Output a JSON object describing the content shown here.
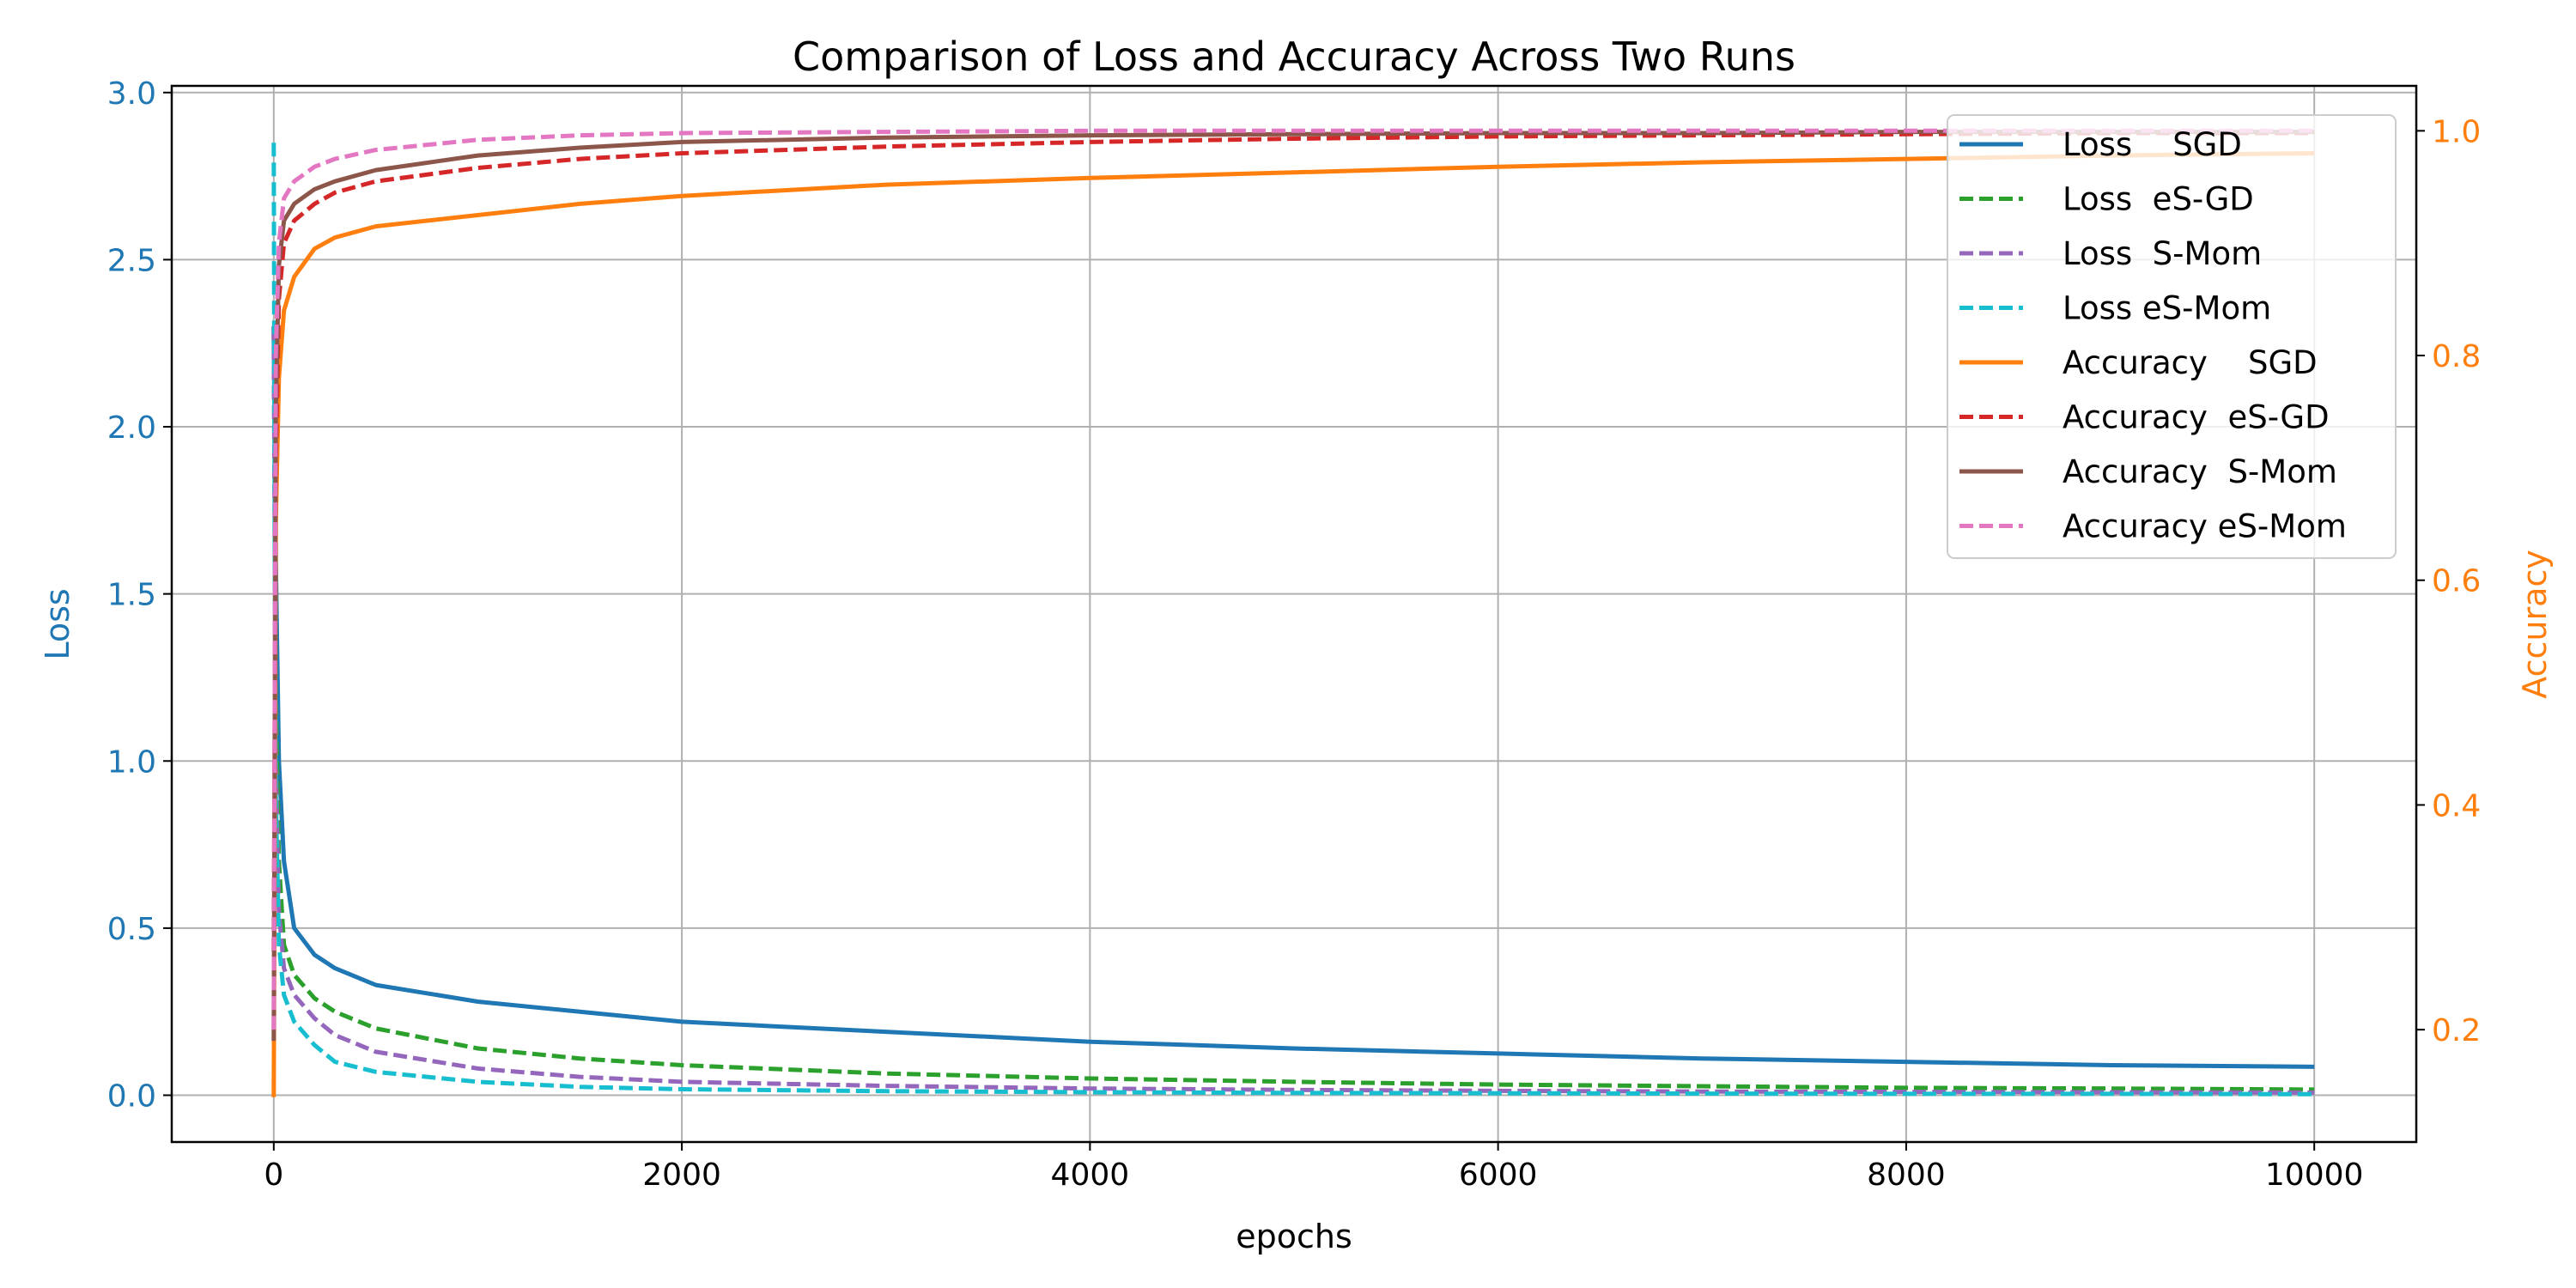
{
  "chart_data": {
    "type": "line",
    "title": "Comparison of Loss and Accuracy Across Two Runs",
    "xlabel": "epochs",
    "ylabel_left": "Loss",
    "ylabel_right": "Accuracy",
    "xlim": [
      -500,
      10500
    ],
    "ylim_left": [
      -0.14,
      3.02
    ],
    "ylim_right": [
      0.1,
      1.04
    ],
    "x_ticks": [
      0,
      2000,
      4000,
      6000,
      8000,
      10000
    ],
    "y_ticks_left": [
      0.0,
      0.5,
      1.0,
      1.5,
      2.0,
      2.5,
      3.0
    ],
    "y_tick_labels_left": [
      "0.0",
      "0.5",
      "1.0",
      "1.5",
      "2.0",
      "2.5",
      "3.0"
    ],
    "y_ticks_right": [
      0.2,
      0.4,
      0.6,
      0.8,
      1.0
    ],
    "y_tick_labels_right": [
      "0.2",
      "0.4",
      "0.6",
      "0.8",
      "1.0"
    ],
    "grid": true,
    "legend_position": "top-right",
    "colors": {
      "left_axis": "#1f77b4",
      "right_axis": "#ff7f0e"
    },
    "series": [
      {
        "name": "Loss    SGD",
        "axis": "left",
        "color": "#1f77b4",
        "dash": "solid",
        "x": [
          0,
          10,
          25,
          50,
          100,
          200,
          300,
          500,
          1000,
          1500,
          2000,
          3000,
          4000,
          5000,
          6000,
          7000,
          8000,
          9000,
          10000
        ],
        "y": [
          2.3,
          1.6,
          1.0,
          0.7,
          0.5,
          0.42,
          0.38,
          0.33,
          0.28,
          0.25,
          0.22,
          0.19,
          0.16,
          0.14,
          0.125,
          0.11,
          0.1,
          0.09,
          0.085
        ]
      },
      {
        "name": "Loss  eS-GD",
        "axis": "left",
        "color": "#2ca02c",
        "dash": "dashed",
        "x": [
          0,
          10,
          25,
          50,
          100,
          200,
          300,
          500,
          1000,
          1500,
          2000,
          3000,
          4000,
          5000,
          6000,
          7000,
          8000,
          9000,
          10000
        ],
        "y": [
          2.3,
          1.2,
          0.7,
          0.45,
          0.36,
          0.29,
          0.25,
          0.2,
          0.14,
          0.11,
          0.09,
          0.065,
          0.05,
          0.04,
          0.032,
          0.027,
          0.022,
          0.02,
          0.017
        ]
      },
      {
        "name": "Loss  S-Mom",
        "axis": "left",
        "color": "#9467bd",
        "dash": "dashed",
        "x": [
          0,
          10,
          25,
          50,
          100,
          200,
          300,
          500,
          1000,
          1500,
          2000,
          3000,
          4000,
          5000,
          6000,
          7000,
          8000,
          9000,
          10000
        ],
        "y": [
          2.3,
          1.0,
          0.55,
          0.38,
          0.3,
          0.23,
          0.18,
          0.13,
          0.08,
          0.055,
          0.04,
          0.028,
          0.02,
          0.016,
          0.013,
          0.011,
          0.01,
          0.009,
          0.008
        ]
      },
      {
        "name": "Loss eS-Mom",
        "axis": "left",
        "color": "#17becf",
        "dash": "dashed",
        "x": [
          0,
          5,
          10,
          25,
          50,
          100,
          200,
          300,
          500,
          1000,
          1500,
          2000,
          3000,
          4000,
          5000,
          6000,
          7000,
          8000,
          9000,
          10000
        ],
        "y": [
          2.85,
          1.6,
          0.9,
          0.45,
          0.3,
          0.22,
          0.15,
          0.1,
          0.07,
          0.04,
          0.025,
          0.018,
          0.012,
          0.009,
          0.007,
          0.006,
          0.005,
          0.004,
          0.004,
          0.003
        ]
      },
      {
        "name": "Accuracy    SGD",
        "axis": "right",
        "color": "#ff7f0e",
        "dash": "solid",
        "x": [
          0,
          10,
          25,
          50,
          100,
          200,
          300,
          500,
          1000,
          1500,
          2000,
          3000,
          4000,
          5000,
          6000,
          7000,
          8000,
          9000,
          10000
        ],
        "y": [
          0.14,
          0.65,
          0.78,
          0.84,
          0.87,
          0.895,
          0.905,
          0.915,
          0.925,
          0.935,
          0.942,
          0.952,
          0.958,
          0.963,
          0.968,
          0.972,
          0.975,
          0.978,
          0.98
        ]
      },
      {
        "name": "Accuracy  eS-GD",
        "axis": "right",
        "color": "#d62728",
        "dash": "dashed",
        "x": [
          0,
          10,
          25,
          50,
          100,
          200,
          300,
          500,
          1000,
          1500,
          2000,
          3000,
          4000,
          5000,
          6000,
          7000,
          8000,
          9000,
          10000
        ],
        "y": [
          0.27,
          0.7,
          0.85,
          0.9,
          0.92,
          0.935,
          0.945,
          0.955,
          0.967,
          0.975,
          0.98,
          0.986,
          0.99,
          0.993,
          0.995,
          0.996,
          0.997,
          0.998,
          0.998
        ]
      },
      {
        "name": "Accuracy  S-Mom",
        "axis": "right",
        "color": "#8c564b",
        "dash": "solid",
        "x": [
          0,
          10,
          25,
          50,
          100,
          200,
          300,
          500,
          1000,
          1500,
          2000,
          3000,
          4000,
          5000,
          6000,
          7000,
          8000,
          9000,
          10000
        ],
        "y": [
          0.19,
          0.75,
          0.88,
          0.92,
          0.935,
          0.948,
          0.955,
          0.965,
          0.978,
          0.985,
          0.99,
          0.994,
          0.996,
          0.997,
          0.998,
          0.998,
          0.999,
          0.999,
          0.999
        ]
      },
      {
        "name": "Accuracy eS-Mom",
        "axis": "right",
        "color": "#e377c2",
        "dash": "dashed",
        "x": [
          0,
          10,
          25,
          50,
          100,
          200,
          300,
          500,
          1000,
          1500,
          2000,
          3000,
          4000,
          5000,
          6000,
          7000,
          8000,
          9000,
          10000
        ],
        "y": [
          0.2,
          0.8,
          0.9,
          0.94,
          0.955,
          0.968,
          0.975,
          0.983,
          0.992,
          0.996,
          0.998,
          0.999,
          1.0,
          1.0,
          1.0,
          1.0,
          1.0,
          1.0,
          1.0
        ]
      }
    ]
  }
}
